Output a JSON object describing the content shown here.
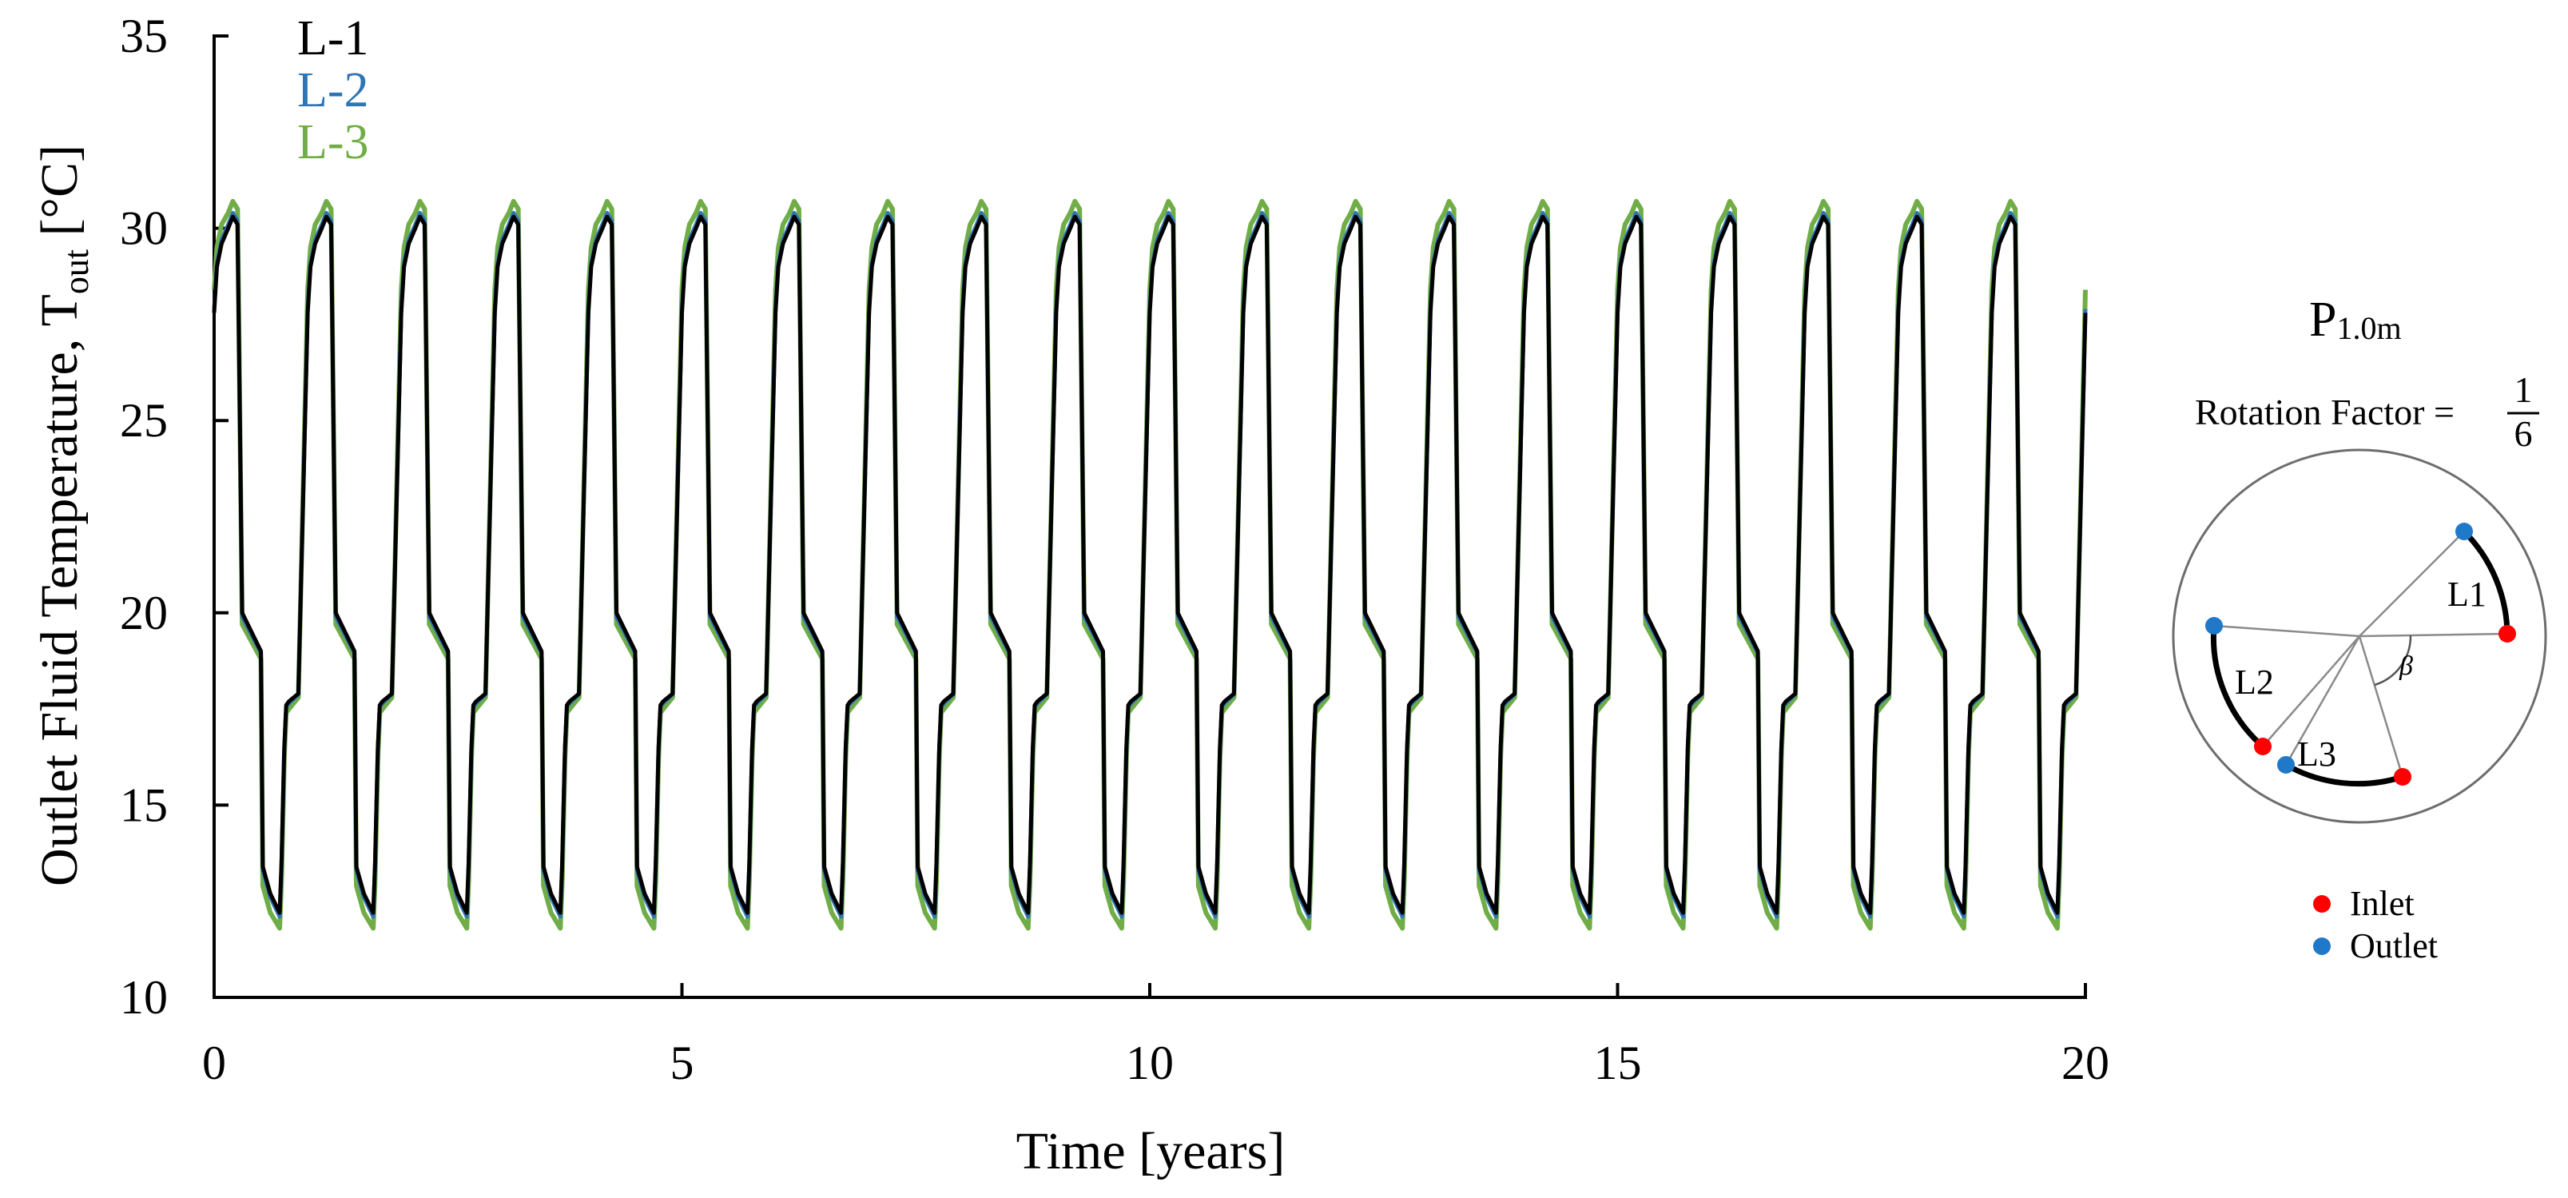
{
  "chart_data": {
    "type": "line",
    "title": "",
    "xlabel": "Time [years]",
    "ylabel": "Outlet Fluid Temperature, T",
    "ylabel_subscript": "out",
    "ylabel_unit": " [°C]",
    "xlim": [
      0,
      20
    ],
    "ylim": [
      10,
      35
    ],
    "x_ticks": [
      0,
      5,
      10,
      15,
      20
    ],
    "y_ticks": [
      10,
      15,
      20,
      25,
      30,
      35
    ],
    "grid": false,
    "legend_position": "top-left",
    "period_years": 1,
    "cycles": 20,
    "series": [
      {
        "name": "L-1",
        "color": "#000000",
        "cycle_profile": {
          "x_offset": [
            0,
            0.03,
            0.08,
            0.15,
            0.2,
            0.25,
            0.3,
            0.5,
            0.52,
            0.6,
            0.7,
            0.72,
            0.75,
            0.77,
            0.8,
            0.9,
            1.0
          ],
          "y": [
            27.8,
            29.0,
            29.6,
            30.0,
            30.3,
            30.1,
            20.0,
            19.0,
            13.4,
            12.7,
            12.2,
            13.5,
            16.5,
            17.6,
            17.7,
            17.9,
            27.8
          ]
        }
      },
      {
        "name": "L-2",
        "color": "#2E75B6",
        "cycle_profile": {
          "x_offset": [
            0,
            0.03,
            0.08,
            0.15,
            0.2,
            0.25,
            0.3,
            0.5,
            0.52,
            0.6,
            0.7,
            0.72,
            0.75,
            0.77,
            0.8,
            0.9,
            1.0
          ],
          "y": [
            27.9,
            29.1,
            29.7,
            30.1,
            30.4,
            30.2,
            19.9,
            18.95,
            13.3,
            12.6,
            12.1,
            13.4,
            16.4,
            17.55,
            17.65,
            17.88,
            27.9
          ]
        }
      },
      {
        "name": "L-3",
        "color": "#70AD47",
        "cycle_profile": {
          "x_offset": [
            0,
            0.03,
            0.08,
            0.15,
            0.2,
            0.25,
            0.3,
            0.5,
            0.52,
            0.6,
            0.7,
            0.72,
            0.75,
            0.77,
            0.8,
            0.9,
            1.0
          ],
          "y": [
            28.4,
            29.5,
            30.1,
            30.4,
            30.7,
            30.5,
            19.7,
            18.8,
            12.9,
            12.2,
            11.8,
            13.0,
            16.2,
            17.4,
            17.5,
            17.8,
            28.4
          ]
        }
      }
    ]
  },
  "inset": {
    "title_main": "P",
    "title_subscript": "1.0m",
    "rotation_label": "Rotation Factor =",
    "rotation_numerator": "1",
    "rotation_denominator": "6",
    "loop_labels": [
      "L1",
      "L2",
      "L3"
    ],
    "angle_label": "β",
    "legend": {
      "inlet_label": "Inlet",
      "outlet_label": "Outlet",
      "inlet_color": "#FF0000",
      "outlet_color": "#1F78C8"
    }
  }
}
